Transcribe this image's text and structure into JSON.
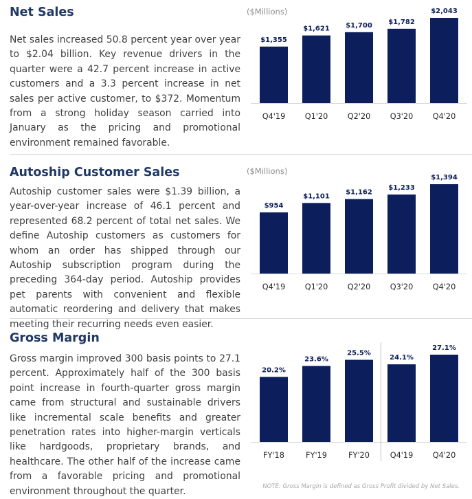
{
  "colors": {
    "bar": "#0c1e5b",
    "title": "#1f3864",
    "text": "#404040"
  },
  "sections": [
    {
      "title": "Net Sales",
      "body": "Net sales increased 50.8 percent year over year to $2.04 billion. Key revenue drivers in the quarter were a 42.7 percent increase in active customers and a 3.3 percent increase in net sales per active customer, to $372. Momentum from a strong holiday season carried into January as the pricing and promotional environment remained favorable.",
      "unit_label": "($Millions)"
    },
    {
      "title": "Autoship Customer Sales",
      "body": "Autoship customer sales were $1.39 billion, a year-over-year increase of 46.1 percent and represented 68.2 percent of total net sales. We define Autoship customers as customers for whom an order has shipped through our Autoship subscription program during the preceding 364-day period. Autoship provides pet parents with convenient and flexible automatic reordering and delivery that makes meeting their recurring needs even easier.",
      "unit_label": "($Millions)"
    },
    {
      "title": "Gross Margin",
      "body": "Gross margin improved 300 basis points to 27.1 percent. Approximately half of the 300 basis point increase in fourth-quarter gross margin came from structural and sustainable drivers like incremental scale benefits and greater penetration rates into higher-margin verticals like hardgoods, proprietary brands, and healthcare. The other half of the increase came from a favorable pricing and promotional environment throughout the quarter.",
      "unit_label": ""
    }
  ],
  "note": "NOTE: Gross Margin is defined as Gross Profit divided by Net Sales.",
  "chart_data": [
    {
      "type": "bar",
      "title": "Net Sales",
      "ylabel": "($Millions)",
      "categories": [
        "Q4'19",
        "Q1'20",
        "Q2'20",
        "Q3'20",
        "Q4'20"
      ],
      "values": [
        1355,
        1621,
        1700,
        1782,
        2043
      ],
      "labels": [
        "$1,355",
        "$1,621",
        "$1,700",
        "$1,782",
        "$2,043"
      ],
      "ylim": [
        0,
        2043
      ]
    },
    {
      "type": "bar",
      "title": "Autoship Customer Sales",
      "ylabel": "($Millions)",
      "categories": [
        "Q4'19",
        "Q1'20",
        "Q2'20",
        "Q3'20",
        "Q4'20"
      ],
      "values": [
        954,
        1101,
        1162,
        1233,
        1394
      ],
      "labels": [
        "$954",
        "$1,101",
        "$1,162",
        "$1,233",
        "$1,394"
      ],
      "ylim": [
        0,
        1394
      ]
    },
    {
      "type": "bar",
      "title": "Gross Margin",
      "ylabel": "",
      "categories": [
        "FY'18",
        "FY'19",
        "FY'20",
        "Q4'19",
        "Q4'20"
      ],
      "values": [
        20.2,
        23.6,
        25.5,
        24.1,
        27.1
      ],
      "labels": [
        "20.2%",
        "23.6%",
        "25.5%",
        "24.1%",
        "27.1%"
      ],
      "ylim": [
        0,
        27.1
      ]
    }
  ]
}
